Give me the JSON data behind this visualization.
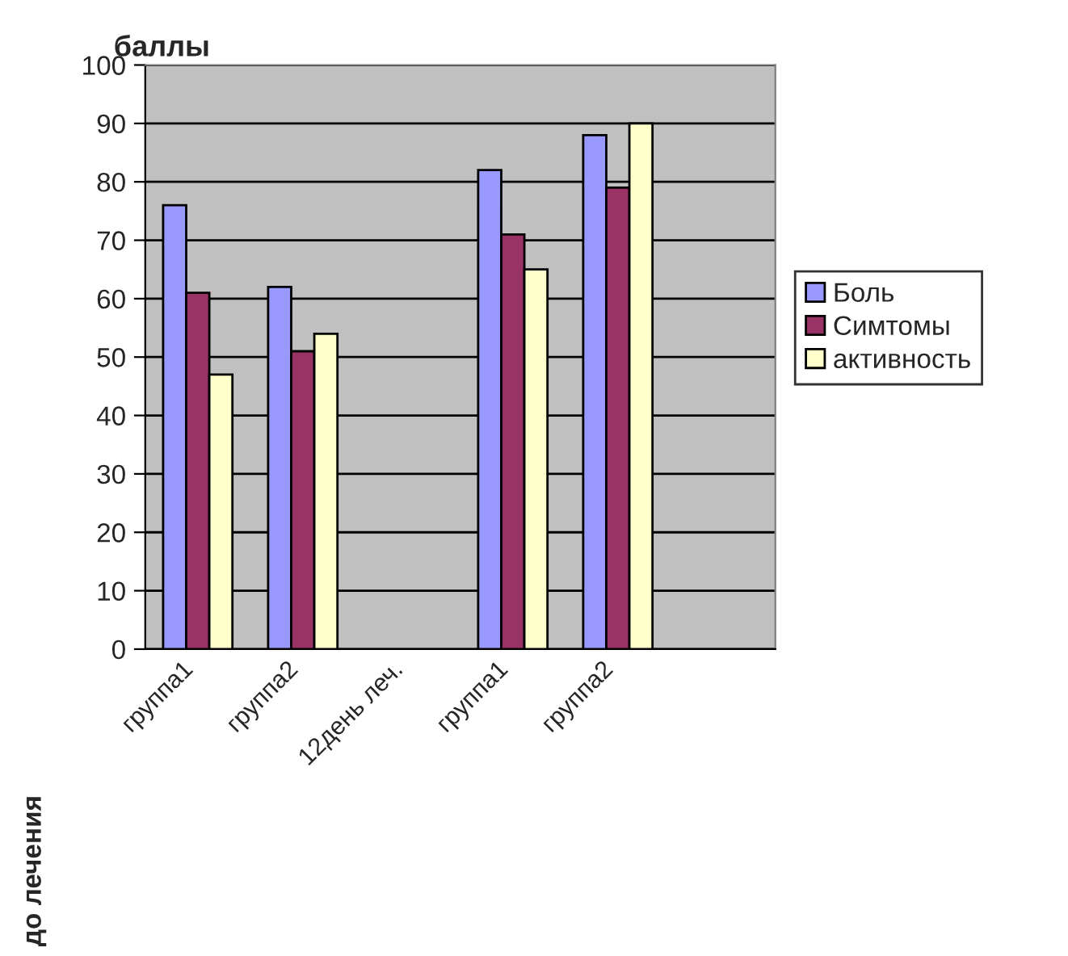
{
  "chart_data": {
    "type": "bar",
    "ylabel": "баллы",
    "categories": [
      "группа1",
      "группа2",
      "12день леч.",
      "группа1",
      "группа2",
      null
    ],
    "series": [
      {
        "name": "Боль",
        "color": "#9999ff",
        "values": [
          76,
          62,
          null,
          82,
          88,
          null
        ]
      },
      {
        "name": "Симтомы",
        "color": "#993366",
        "values": [
          61,
          51,
          null,
          71,
          79,
          null
        ]
      },
      {
        "name": "активность",
        "color": "#ffffcc",
        "values": [
          47,
          54,
          null,
          65,
          90,
          null
        ]
      }
    ],
    "ylim": [
      0,
      100
    ],
    "yticks": [
      0,
      10,
      20,
      30,
      40,
      50,
      60,
      70,
      80,
      90,
      100
    ],
    "grid": "y",
    "legend": "right",
    "annotations": [
      "до лечения"
    ]
  }
}
